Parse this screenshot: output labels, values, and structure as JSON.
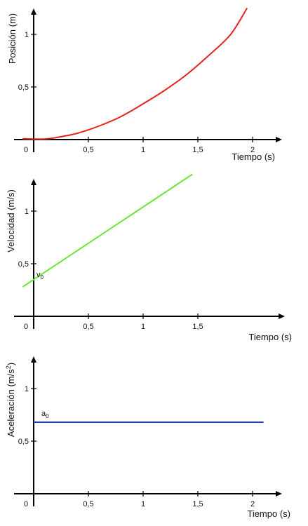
{
  "chart_data": [
    {
      "type": "line",
      "ylabel": "Posición (m)",
      "xlabel": "Tiempo (s)",
      "x_ticks": [
        "0",
        "0,5",
        "1",
        "1,5",
        "2"
      ],
      "y_ticks": [
        "0,5",
        "1"
      ],
      "xlim": [
        -0.1,
        2.3
      ],
      "ylim": [
        0,
        1.25
      ],
      "series": [
        {
          "color": "#e8231c",
          "x": [
            -0.1,
            0,
            0.1,
            0.2,
            0.4,
            0.6,
            0.8,
            1.0,
            1.2,
            1.4,
            1.6,
            1.8,
            1.95
          ],
          "y": [
            0.008,
            0.005,
            0.005,
            0.018,
            0.06,
            0.13,
            0.22,
            0.34,
            0.47,
            0.62,
            0.8,
            1.0,
            1.25
          ]
        }
      ]
    },
    {
      "type": "line",
      "ylabel": "Velocidad (m/s)",
      "xlabel": "Tiempo (s)",
      "x_ticks": [
        "0",
        "0,5",
        "1",
        "1,5"
      ],
      "y_ticks": [
        "0,5",
        "1"
      ],
      "xlim": [
        -0.1,
        2.3
      ],
      "ylim": [
        0,
        1.35
      ],
      "annotation": {
        "text": "v",
        "subscript": "0"
      },
      "series": [
        {
          "color": "#66e83a",
          "x": [
            -0.1,
            1.45
          ],
          "y": [
            0.28,
            1.35
          ]
        }
      ]
    },
    {
      "type": "line",
      "ylabel": "Aceleración (m/s",
      "ylabel_sup": "2",
      "ylabel_end": ")",
      "xlabel": "Tiempo (s)",
      "x_ticks": [
        "0",
        "0,5",
        "1",
        "1,5",
        "2"
      ],
      "y_ticks": [
        "0,5",
        "1"
      ],
      "xlim": [
        -0.1,
        2.3
      ],
      "ylim": [
        0,
        1.25
      ],
      "annotation": {
        "text": "a",
        "subscript": "0"
      },
      "series": [
        {
          "color": "#1f3fd6",
          "x": [
            0,
            2.1
          ],
          "y": [
            0.68,
            0.68
          ]
        }
      ]
    }
  ]
}
